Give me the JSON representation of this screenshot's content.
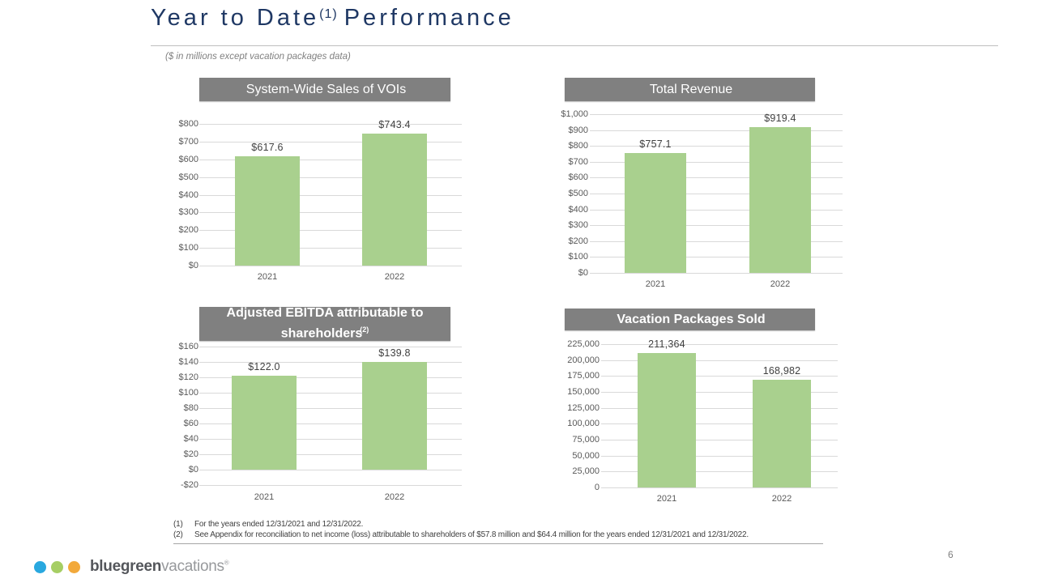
{
  "slide": {
    "title": {
      "pre": "Year to Date",
      "sup": "(1)",
      "post": "Performance"
    },
    "subtitle": "($ in millions except vacation packages data)",
    "page_number": "6"
  },
  "colors": {
    "title_navy": "#1F3864",
    "header_bar_gray": "#808080",
    "bar_green": "#A9D08E",
    "gridline_gray": "#D9D9D9",
    "tick_text_gray": "#595959"
  },
  "chart_data": [
    {
      "id": "system-wide-sales-of-vois",
      "type": "bar",
      "title": "System-Wide Sales of VOIs",
      "title_sup": "",
      "categories": [
        "2021",
        "2022"
      ],
      "values": [
        617.6,
        743.4
      ],
      "value_labels": [
        "$617.6",
        "$743.4"
      ],
      "ylim": [
        0,
        800
      ],
      "ytick_step": 100,
      "ytick_labels": [
        "$800",
        "$700",
        "$600",
        "$500",
        "$400",
        "$300",
        "$200",
        "$100",
        "$0"
      ]
    },
    {
      "id": "total-revenue",
      "type": "bar",
      "title": "Total Revenue",
      "title_sup": "",
      "categories": [
        "2021",
        "2022"
      ],
      "values": [
        757.1,
        919.4
      ],
      "value_labels": [
        "$757.1",
        "$919.4"
      ],
      "ylim": [
        0,
        1000
      ],
      "ytick_step": 100,
      "ytick_labels": [
        "$1,000",
        "$900",
        "$800",
        "$700",
        "$600",
        "$500",
        "$400",
        "$300",
        "$200",
        "$100",
        "$0"
      ]
    },
    {
      "id": "adjusted-ebitda-attributable-to-shareholders",
      "type": "bar",
      "title": "Adjusted EBITDA attributable to shareholders",
      "title_sup": "(2)",
      "categories": [
        "2021",
        "2022"
      ],
      "values": [
        122.0,
        139.8
      ],
      "value_labels": [
        "$122.0",
        "$139.8"
      ],
      "ylim": [
        -20,
        160
      ],
      "ytick_step": 20,
      "ytick_labels": [
        "$160",
        "$140",
        "$120",
        "$100",
        "$80",
        "$60",
        "$40",
        "$20",
        "$0",
        "-$20"
      ]
    },
    {
      "id": "vacation-packages-sold",
      "type": "bar",
      "title": "Vacation Packages Sold",
      "title_sup": "",
      "categories": [
        "2021",
        "2022"
      ],
      "values": [
        211364,
        168982
      ],
      "value_labels": [
        "211,364",
        "168,982"
      ],
      "ylim": [
        0,
        225000
      ],
      "ytick_step": 25000,
      "ytick_labels": [
        "225,000",
        "200,000",
        "175,000",
        "150,000",
        "125,000",
        "100,000",
        "75,000",
        "50,000",
        "25,000",
        "0"
      ]
    }
  ],
  "footnotes": [
    {
      "num": "(1)",
      "text": "For the years ended 12/31/2021 and 12/31/2022."
    },
    {
      "num": "(2)",
      "text": "See Appendix for reconciliation to net income (loss) attributable to shareholders of $57.8 million and $64.4 million for the years ended 12/31/2021 and 12/31/2022."
    }
  ],
  "logo": {
    "dot_colors": [
      "#29A8DF",
      "#A6CE64",
      "#F2A93B"
    ],
    "text_bold": "bluegreen",
    "text_light": "vacations",
    "registered": "®"
  }
}
